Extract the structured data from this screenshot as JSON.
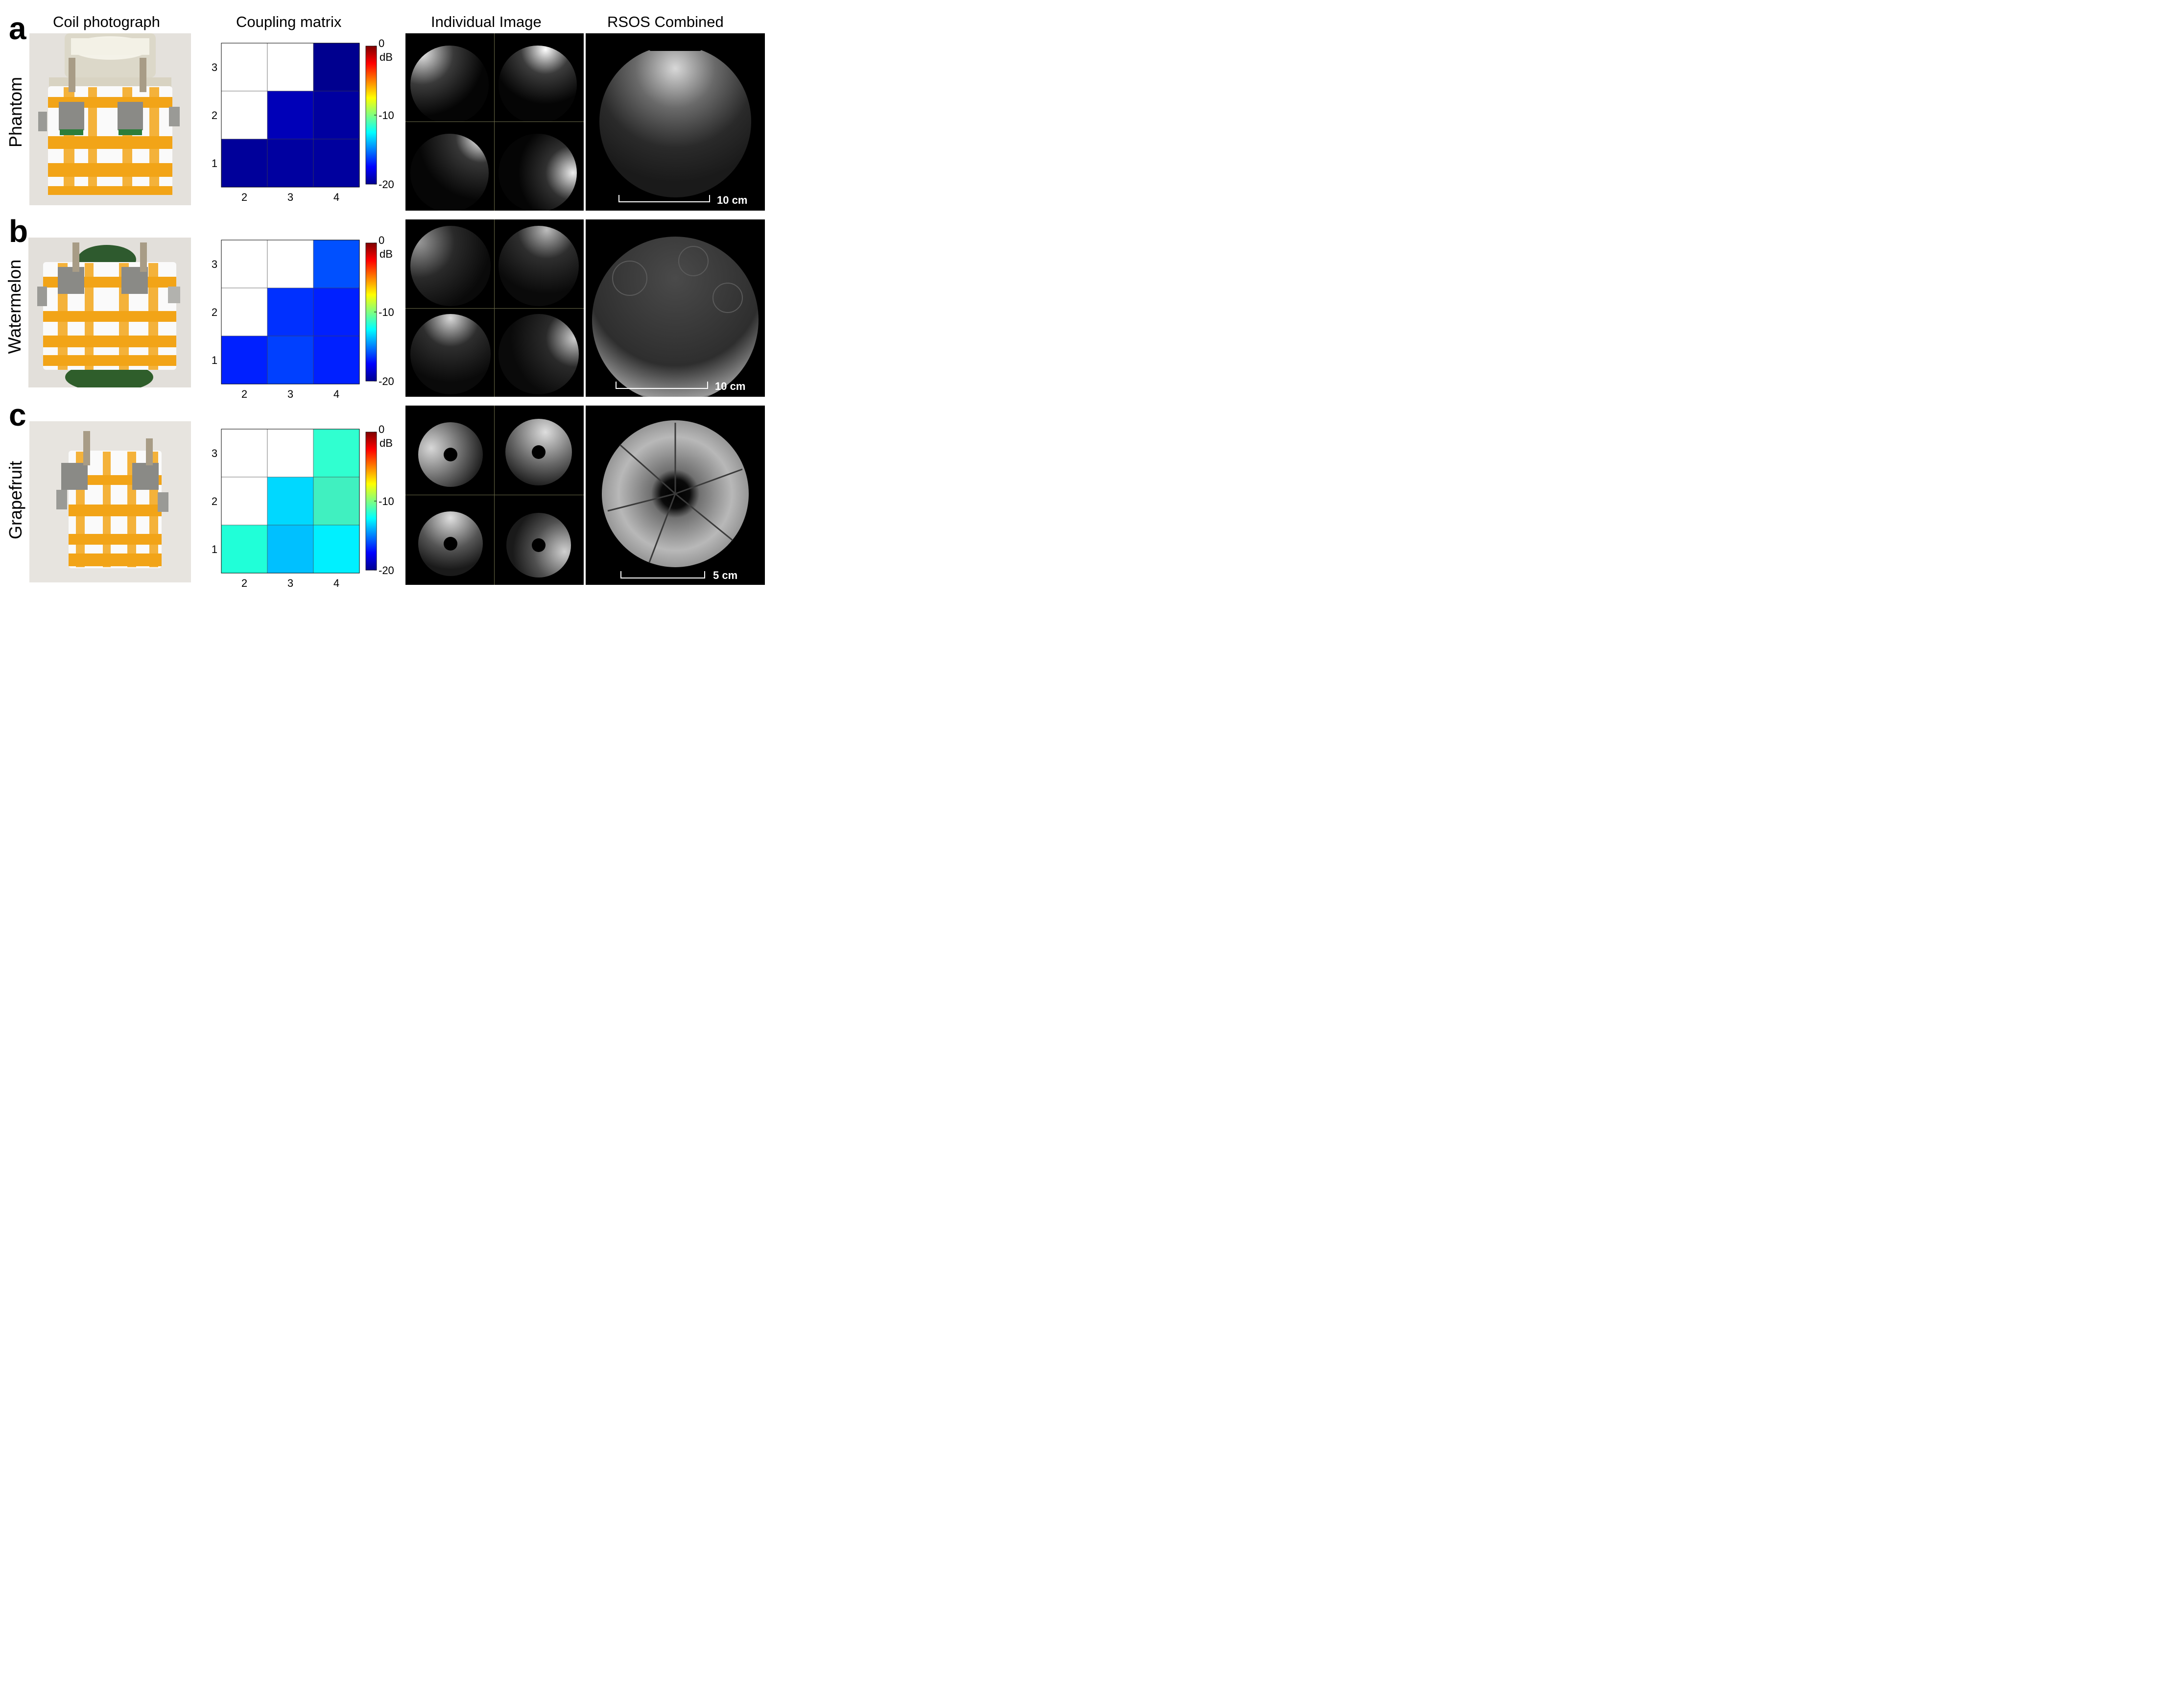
{
  "columns": {
    "photo": "Coil photograph",
    "coupling": "Coupling matrix",
    "individual": "Individual Image",
    "combined": "RSOS Combined"
  },
  "colorbar": {
    "ticks": [
      "0",
      "-10",
      "-20"
    ],
    "unit": "dB",
    "colors": [
      "#7f0000",
      "#ff0000",
      "#ff8000",
      "#ffff00",
      "#80ff80",
      "#00ffff",
      "#0080ff",
      "#0000ff",
      "#00008f"
    ]
  },
  "rows": [
    {
      "letter": "a",
      "label": "Phantom",
      "scale_bar": "10 cm",
      "matrix": {
        "x_ticks": [
          "2",
          "3",
          "4"
        ],
        "y_ticks": [
          "3",
          "2",
          "1"
        ],
        "cells": [
          [
            null,
            null,
            -20
          ],
          [
            null,
            -18.5,
            -19.5
          ],
          [
            -20,
            -19.5,
            -19.5
          ]
        ],
        "colors": [
          [
            null,
            null,
            "#00008f"
          ],
          [
            null,
            "#0000b8",
            "#0000a0"
          ],
          [
            "#00009a",
            "#0000a0",
            "#00009e"
          ]
        ]
      }
    },
    {
      "letter": "b",
      "label": "Watermelon",
      "scale_bar": "10 cm",
      "matrix": {
        "x_ticks": [
          "2",
          "3",
          "4"
        ],
        "y_ticks": [
          "3",
          "2",
          "1"
        ],
        "cells": [
          [
            null,
            null,
            -15
          ],
          [
            null,
            -16,
            -17
          ],
          [
            -17,
            -15.5,
            -17
          ]
        ],
        "colors": [
          [
            null,
            null,
            "#0050ff"
          ],
          [
            null,
            "#0030ff",
            "#0020ff"
          ],
          [
            "#0020ff",
            "#0040ff",
            "#0020ff"
          ]
        ]
      }
    },
    {
      "letter": "c",
      "label": "Grapefruit",
      "scale_bar": "5 cm",
      "matrix": {
        "x_ticks": [
          "2",
          "3",
          "4"
        ],
        "y_ticks": [
          "3",
          "2",
          "1"
        ],
        "cells": [
          [
            null,
            null,
            -11
          ],
          [
            null,
            -12.5,
            -11
          ],
          [
            -11,
            -13,
            -12
          ]
        ],
        "colors": [
          [
            null,
            null,
            "#30ffd0"
          ],
          [
            null,
            "#00d8ff",
            "#40f0c0"
          ],
          [
            "#20ffd8",
            "#00c0ff",
            "#00f0ff"
          ]
        ]
      }
    }
  ]
}
